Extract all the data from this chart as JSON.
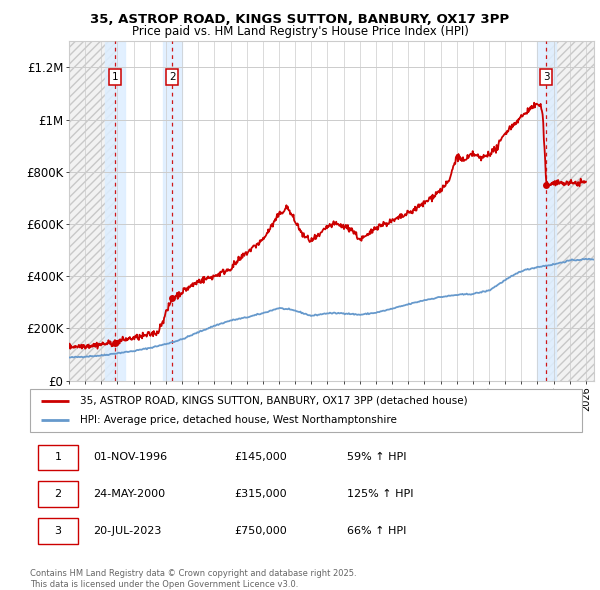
{
  "title": "35, ASTROP ROAD, KINGS SUTTON, BANBURY, OX17 3PP",
  "subtitle": "Price paid vs. HM Land Registry's House Price Index (HPI)",
  "legend_line1": "35, ASTROP ROAD, KINGS SUTTON, BANBURY, OX17 3PP (detached house)",
  "legend_line2": "HPI: Average price, detached house, West Northamptonshire",
  "footer": "Contains HM Land Registry data © Crown copyright and database right 2025.\nThis data is licensed under the Open Government Licence v3.0.",
  "sales": [
    {
      "label": "1",
      "date": "01-NOV-1996",
      "price": 145000,
      "pct": "59%",
      "date_num": 1996.84
    },
    {
      "label": "2",
      "date": "24-MAY-2000",
      "price": 315000,
      "pct": "125%",
      "date_num": 2000.4
    },
    {
      "label": "3",
      "date": "20-JUL-2023",
      "price": 750000,
      "pct": "66%",
      "date_num": 2023.55
    }
  ],
  "ylim": [
    0,
    1300000
  ],
  "xlim_start": 1994.0,
  "xlim_end": 2026.5,
  "yticks": [
    0,
    200000,
    400000,
    600000,
    800000,
    1000000,
    1200000
  ],
  "ytick_labels": [
    "£0",
    "£200K",
    "£400K",
    "£600K",
    "£800K",
    "£1M",
    "£1.2M"
  ],
  "property_color": "#cc0000",
  "hpi_color": "#6699cc",
  "sale_box_color": "#cc0000",
  "sale_shade_color": "#ddeeff",
  "bg_color": "#ffffff",
  "grid_color": "#cccccc",
  "hatch_color": "#c8c8c8",
  "hpi_waypoints": [
    [
      1994.0,
      88000
    ],
    [
      1995.0,
      92000
    ],
    [
      1996.0,
      96000
    ],
    [
      1997.0,
      105000
    ],
    [
      1998.0,
      113000
    ],
    [
      1999.0,
      125000
    ],
    [
      2000.0,
      140000
    ],
    [
      2001.0,
      158000
    ],
    [
      2002.0,
      185000
    ],
    [
      2003.0,
      210000
    ],
    [
      2004.0,
      230000
    ],
    [
      2005.0,
      242000
    ],
    [
      2006.0,
      258000
    ],
    [
      2007.0,
      278000
    ],
    [
      2008.0,
      268000
    ],
    [
      2009.0,
      248000
    ],
    [
      2010.0,
      258000
    ],
    [
      2011.0,
      258000
    ],
    [
      2012.0,
      252000
    ],
    [
      2013.0,
      260000
    ],
    [
      2014.0,
      275000
    ],
    [
      2015.0,
      292000
    ],
    [
      2016.0,
      308000
    ],
    [
      2017.0,
      320000
    ],
    [
      2018.0,
      328000
    ],
    [
      2019.0,
      332000
    ],
    [
      2020.0,
      345000
    ],
    [
      2021.0,
      385000
    ],
    [
      2022.0,
      420000
    ],
    [
      2023.0,
      435000
    ],
    [
      2024.0,
      445000
    ],
    [
      2025.0,
      460000
    ],
    [
      2026.0,
      465000
    ]
  ],
  "prop_waypoints": [
    [
      1994.0,
      130000
    ],
    [
      1995.5,
      135000
    ],
    [
      1996.84,
      145000
    ],
    [
      1997.5,
      158000
    ],
    [
      1998.5,
      168000
    ],
    [
      1999.5,
      185000
    ],
    [
      2000.4,
      315000
    ],
    [
      2001.0,
      340000
    ],
    [
      2002.0,
      380000
    ],
    [
      2003.0,
      400000
    ],
    [
      2004.0,
      430000
    ],
    [
      2005.0,
      490000
    ],
    [
      2006.0,
      540000
    ],
    [
      2007.0,
      635000
    ],
    [
      2007.5,
      665000
    ],
    [
      2008.0,
      610000
    ],
    [
      2008.5,
      555000
    ],
    [
      2009.0,
      535000
    ],
    [
      2009.5,
      555000
    ],
    [
      2010.0,
      590000
    ],
    [
      2010.5,
      600000
    ],
    [
      2011.0,
      590000
    ],
    [
      2011.5,
      580000
    ],
    [
      2012.0,
      540000
    ],
    [
      2012.5,
      555000
    ],
    [
      2013.0,
      590000
    ],
    [
      2013.5,
      600000
    ],
    [
      2014.0,
      610000
    ],
    [
      2015.0,
      640000
    ],
    [
      2016.0,
      680000
    ],
    [
      2017.0,
      730000
    ],
    [
      2017.5,
      760000
    ],
    [
      2018.0,
      860000
    ],
    [
      2018.5,
      840000
    ],
    [
      2019.0,
      870000
    ],
    [
      2019.5,
      850000
    ],
    [
      2020.0,
      870000
    ],
    [
      2020.5,
      890000
    ],
    [
      2021.0,
      950000
    ],
    [
      2021.5,
      980000
    ],
    [
      2022.0,
      1010000
    ],
    [
      2022.5,
      1040000
    ],
    [
      2023.0,
      1060000
    ],
    [
      2023.3,
      1040000
    ],
    [
      2023.55,
      750000
    ],
    [
      2024.0,
      760000
    ],
    [
      2025.0,
      755000
    ],
    [
      2026.0,
      760000
    ]
  ]
}
